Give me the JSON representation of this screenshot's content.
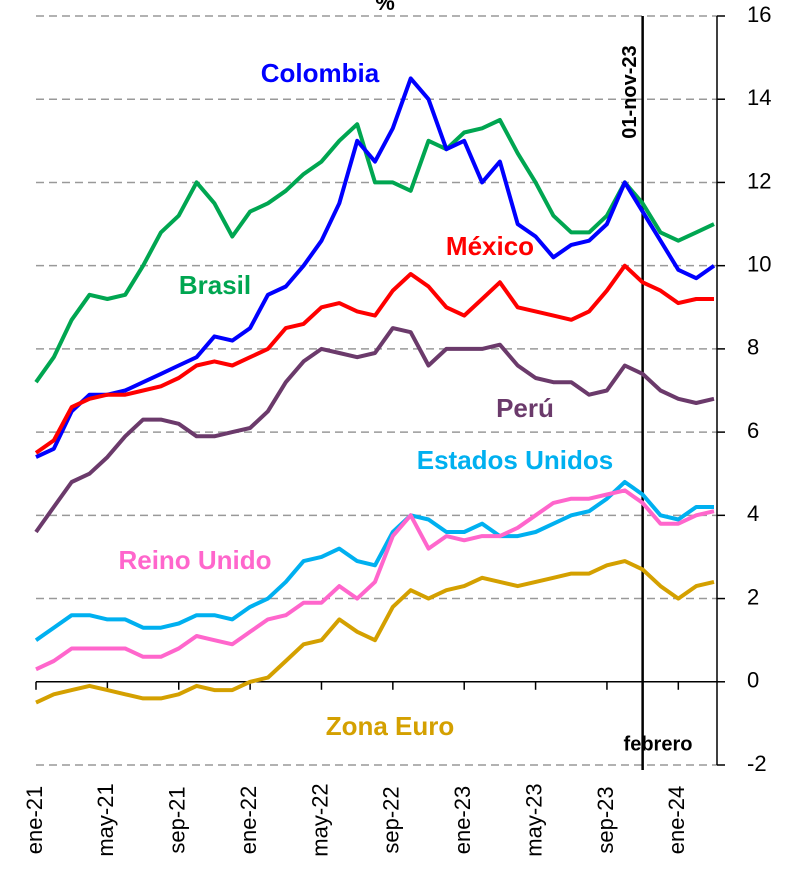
{
  "chart_data": {
    "type": "line",
    "unit": "%",
    "categories": [
      "ene-21",
      null,
      null,
      null,
      "may-21",
      null,
      null,
      null,
      "sep-21",
      null,
      null,
      null,
      "ene-22",
      null,
      null,
      null,
      "may-22",
      null,
      null,
      null,
      "sep-22",
      null,
      null,
      null,
      "ene-23",
      null,
      null,
      null,
      "may-23",
      null,
      null,
      null,
      "sep-23",
      null,
      null,
      null,
      "ene-24",
      null,
      null
    ],
    "series": [
      {
        "name": "Brasil",
        "color": "#00a651",
        "values": [
          7.2,
          7.8,
          8.7,
          9.3,
          9.2,
          9.3,
          10.0,
          10.8,
          11.2,
          12.0,
          11.5,
          10.7,
          11.3,
          11.5,
          11.8,
          12.2,
          12.5,
          13.0,
          13.4,
          12.0,
          12.0,
          11.8,
          13.0,
          12.8,
          13.2,
          13.3,
          13.5,
          12.7,
          12.0,
          11.2,
          10.8,
          10.8,
          11.2,
          12.0,
          11.5,
          10.8,
          10.6,
          10.8,
          11.0
        ]
      },
      {
        "name": "Colombia",
        "color": "#0000ff",
        "values": [
          5.4,
          5.6,
          6.5,
          6.9,
          6.9,
          7.0,
          7.2,
          7.4,
          7.6,
          7.8,
          8.3,
          8.2,
          8.5,
          9.3,
          9.5,
          10.0,
          10.6,
          11.5,
          13.0,
          12.5,
          13.3,
          14.5,
          14.0,
          12.8,
          13.0,
          12.0,
          12.5,
          11.0,
          10.7,
          10.2,
          10.5,
          10.6,
          11.0,
          12.0,
          11.3,
          10.6,
          9.9,
          9.7,
          10.0
        ]
      },
      {
        "name": "México",
        "color": "#ff0000",
        "values": [
          5.5,
          5.8,
          6.6,
          6.8,
          6.9,
          6.9,
          7.0,
          7.1,
          7.3,
          7.6,
          7.7,
          7.6,
          7.8,
          8.0,
          8.5,
          8.6,
          9.0,
          9.1,
          8.9,
          8.8,
          9.4,
          9.8,
          9.5,
          9.0,
          8.8,
          9.2,
          9.6,
          9.0,
          8.9,
          8.8,
          8.7,
          8.9,
          9.4,
          10.0,
          9.6,
          9.4,
          9.1,
          9.2,
          9.2
        ]
      },
      {
        "name": "Perú",
        "color": "#6b3a6b",
        "values": [
          3.6,
          4.2,
          4.8,
          5.0,
          5.4,
          5.9,
          6.3,
          6.3,
          6.2,
          5.9,
          5.9,
          6.0,
          6.1,
          6.5,
          7.2,
          7.7,
          8.0,
          7.9,
          7.8,
          7.9,
          8.5,
          8.4,
          7.6,
          8.0,
          8.0,
          8.0,
          8.1,
          7.6,
          7.3,
          7.2,
          7.2,
          6.9,
          7.0,
          7.6,
          7.4,
          7.0,
          6.8,
          6.7,
          6.8
        ]
      },
      {
        "name": "Estados Unidos",
        "color": "#00b0f0",
        "values": [
          1.0,
          1.3,
          1.6,
          1.6,
          1.5,
          1.5,
          1.3,
          1.3,
          1.4,
          1.6,
          1.6,
          1.5,
          1.8,
          2.0,
          2.4,
          2.9,
          3.0,
          3.2,
          2.9,
          2.8,
          3.6,
          4.0,
          3.9,
          3.6,
          3.6,
          3.8,
          3.5,
          3.5,
          3.6,
          3.8,
          4.0,
          4.1,
          4.4,
          4.8,
          4.5,
          4.0,
          3.9,
          4.2,
          4.2
        ]
      },
      {
        "name": "Reino Unido",
        "color": "#ff66cc",
        "values": [
          0.3,
          0.5,
          0.8,
          0.8,
          0.8,
          0.8,
          0.6,
          0.6,
          0.8,
          1.1,
          1.0,
          0.9,
          1.2,
          1.5,
          1.6,
          1.9,
          1.9,
          2.3,
          2.0,
          2.4,
          3.5,
          4.0,
          3.2,
          3.5,
          3.4,
          3.5,
          3.5,
          3.7,
          4.0,
          4.3,
          4.4,
          4.4,
          4.5,
          4.6,
          4.3,
          3.8,
          3.8,
          4.0,
          4.1
        ]
      },
      {
        "name": "Zona Euro",
        "color": "#d4a000",
        "values": [
          -0.5,
          -0.3,
          -0.2,
          -0.1,
          -0.2,
          -0.3,
          -0.4,
          -0.4,
          -0.3,
          -0.1,
          -0.2,
          -0.2,
          0.0,
          0.1,
          0.5,
          0.9,
          1.0,
          1.5,
          1.2,
          1.0,
          1.8,
          2.2,
          2.0,
          2.2,
          2.3,
          2.5,
          2.4,
          2.3,
          2.4,
          2.5,
          2.6,
          2.6,
          2.8,
          2.9,
          2.7,
          2.3,
          2.0,
          2.3,
          2.4
        ]
      }
    ],
    "ylim": [
      -2,
      16
    ],
    "yticks": [
      -2,
      0,
      2,
      4,
      6,
      8,
      10,
      12,
      14,
      16
    ],
    "grid": true,
    "vline_label": "01-nov-23",
    "note": "febrero"
  }
}
